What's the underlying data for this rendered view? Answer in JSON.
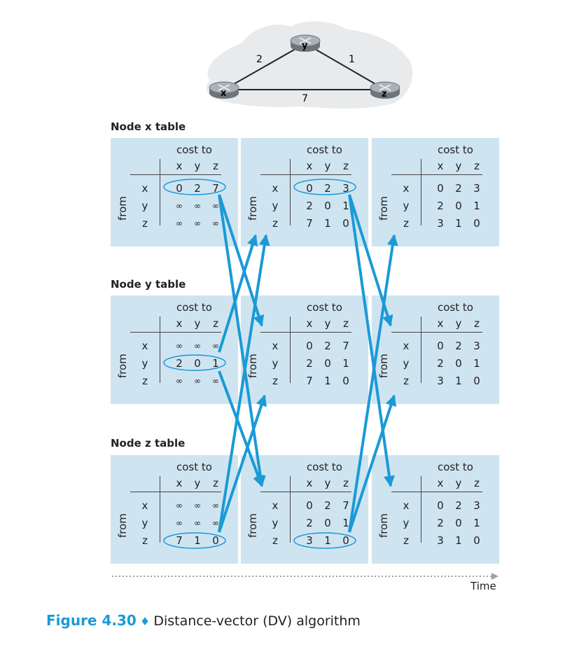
{
  "network": {
    "nodes": [
      "x",
      "y",
      "z"
    ],
    "links": [
      {
        "from": "x",
        "to": "y",
        "cost": "2"
      },
      {
        "from": "y",
        "to": "z",
        "cost": "1"
      },
      {
        "from": "x",
        "to": "z",
        "cost": "7"
      }
    ]
  },
  "labels": {
    "cost_to": "cost to",
    "from": "from",
    "dest_headers": [
      "x",
      "y",
      "z"
    ],
    "row_headers": [
      "x",
      "y",
      "z"
    ],
    "infinity": "∞"
  },
  "sections": [
    {
      "title": "Node x table",
      "tables": [
        [
          [
            "0",
            "2",
            "7"
          ],
          [
            "∞",
            "∞",
            "∞"
          ],
          [
            "∞",
            "∞",
            "∞"
          ]
        ],
        [
          [
            "0",
            "2",
            "3"
          ],
          [
            "2",
            "0",
            "1"
          ],
          [
            "7",
            "1",
            "0"
          ]
        ],
        [
          [
            "0",
            "2",
            "3"
          ],
          [
            "2",
            "0",
            "1"
          ],
          [
            "3",
            "1",
            "0"
          ]
        ]
      ]
    },
    {
      "title": "Node y table",
      "tables": [
        [
          [
            "∞",
            "∞",
            "∞"
          ],
          [
            "2",
            "0",
            "1"
          ],
          [
            "∞",
            "∞",
            "∞"
          ]
        ],
        [
          [
            "0",
            "2",
            "7"
          ],
          [
            "2",
            "0",
            "1"
          ],
          [
            "7",
            "1",
            "0"
          ]
        ],
        [
          [
            "0",
            "2",
            "3"
          ],
          [
            "2",
            "0",
            "1"
          ],
          [
            "3",
            "1",
            "0"
          ]
        ]
      ]
    },
    {
      "title": "Node z table",
      "tables": [
        [
          [
            "∞",
            "∞",
            "∞"
          ],
          [
            "∞",
            "∞",
            "∞"
          ],
          [
            "7",
            "1",
            "0"
          ]
        ],
        [
          [
            "0",
            "2",
            "7"
          ],
          [
            "2",
            "0",
            "1"
          ],
          [
            "3",
            "1",
            "0"
          ]
        ],
        [
          [
            "0",
            "2",
            "3"
          ],
          [
            "2",
            "0",
            "1"
          ],
          [
            "3",
            "1",
            "0"
          ]
        ]
      ]
    }
  ],
  "time_label": "Time",
  "caption": {
    "figure": "Figure 4.30",
    "diamond": "♦",
    "text": "Distance-vector (DV) algorithm"
  },
  "colors": {
    "arrow": "#1a9ad6",
    "panel": "#cfe4f1",
    "cloud": "#e8eaec",
    "router": "#9aa3aa"
  }
}
